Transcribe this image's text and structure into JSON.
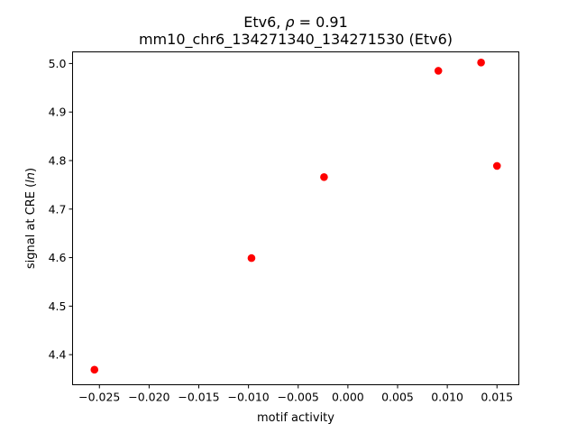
{
  "chart_data": {
    "type": "scatter",
    "title": "Etv6, ρ = 0.91",
    "title_parts": {
      "prefix": "Etv6, ",
      "rho": "ρ",
      "suffix": " = 0.91"
    },
    "subtitle": "mm10_chr6_134271340_134271530 (Etv6)",
    "xlabel": "motif activity",
    "ylabel": "signal at CRE (ln)",
    "ylabel_parts": {
      "prefix": "signal at CRE (",
      "italic": "ln",
      "suffix": ")"
    },
    "xlim": [
      -0.0277,
      0.0172
    ],
    "ylim": [
      4.338,
      5.024
    ],
    "x_ticks": [
      -0.025,
      -0.02,
      -0.015,
      -0.01,
      -0.005,
      0.0,
      0.005,
      0.01,
      0.015
    ],
    "x_tick_labels": [
      "−0.025",
      "−0.020",
      "−0.015",
      "−0.010",
      "−0.005",
      "0.000",
      "0.005",
      "0.010",
      "0.015"
    ],
    "y_ticks": [
      4.4,
      4.5,
      4.6,
      4.7,
      4.8,
      4.9,
      5.0
    ],
    "y_tick_labels": [
      "4.4",
      "4.5",
      "4.6",
      "4.7",
      "4.8",
      "4.9",
      "5.0"
    ],
    "grid": false,
    "point_color": "#ff0000",
    "series": [
      {
        "x": [
          -0.0255,
          -0.0097,
          -0.0024,
          0.0091,
          0.0134,
          0.015
        ],
        "y": [
          4.369,
          4.599,
          4.766,
          4.985,
          5.002,
          4.789
        ]
      }
    ]
  }
}
